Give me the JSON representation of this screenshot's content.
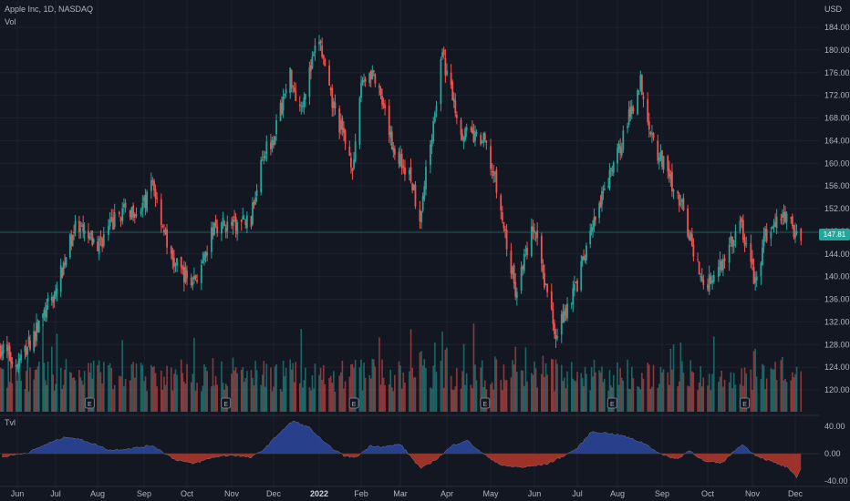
{
  "header": {
    "symbol_line": "Apple Inc, 1D, NASDAQ",
    "vol_label": "Vol",
    "currency": "USD"
  },
  "indicator": {
    "name": "Tvl"
  },
  "last_price_label": "147.81",
  "colors": {
    "background": "#131722",
    "up": "#26a69a",
    "down": "#ef5350",
    "osc_positive": "#2e4aa8",
    "osc_negative": "#c0392b",
    "grid": "#1e222d",
    "last_price_line": "#26a69a"
  },
  "icons": {
    "earnings_marker": "earnings-icon"
  },
  "chart_data": [
    {
      "type": "candlestick",
      "title": "Apple Inc, 1D, NASDAQ",
      "y_axis_label": "USD",
      "y_ticks": [
        "184.00",
        "180.00",
        "176.00",
        "172.00",
        "168.00",
        "164.00",
        "160.00",
        "156.00",
        "152.00",
        "148.00",
        "144.00",
        "140.00",
        "136.00",
        "132.00",
        "128.00",
        "124.00",
        "120.00"
      ],
      "ylim": [
        117.5,
        187
      ],
      "x_ticks": [
        "Jun",
        "Jul",
        "Aug",
        "Sep",
        "Oct",
        "Nov",
        "Dec",
        "2022",
        "Feb",
        "Mar",
        "Apr",
        "May",
        "Jun",
        "Jul",
        "Aug",
        "Sep",
        "Oct",
        "Nov",
        "Dec"
      ],
      "x_tick_dates": [
        "2021-06-01",
        "2021-07-01",
        "2021-08-02",
        "2021-09-01",
        "2021-10-01",
        "2021-11-01",
        "2021-12-01",
        "2022-01-03",
        "2022-02-01",
        "2022-03-01",
        "2022-04-01",
        "2022-05-02",
        "2022-06-01",
        "2022-07-01",
        "2022-08-01",
        "2022-09-01",
        "2022-10-03",
        "2022-11-01",
        "2022-12-01"
      ],
      "close_path": [
        [
          "2021-05-20",
          127.3
        ],
        [
          "2021-06-01",
          124.3
        ],
        [
          "2021-06-15",
          130.2
        ],
        [
          "2021-07-01",
          137.3
        ],
        [
          "2021-07-15",
          148.5
        ],
        [
          "2021-08-02",
          145.5
        ],
        [
          "2021-08-16",
          151.1
        ],
        [
          "2021-09-01",
          152.5
        ],
        [
          "2021-09-07",
          156.7
        ],
        [
          "2021-09-20",
          142.9
        ],
        [
          "2021-10-04",
          139.1
        ],
        [
          "2021-10-12",
          141.5
        ],
        [
          "2021-10-20",
          149.3
        ],
        [
          "2021-11-01",
          148.9
        ],
        [
          "2021-11-15",
          150.0
        ],
        [
          "2021-11-22",
          161.4
        ],
        [
          "2021-12-01",
          164.8
        ],
        [
          "2021-12-13",
          175.7
        ],
        [
          "2021-12-20",
          169.8
        ],
        [
          "2022-01-03",
          182.0
        ],
        [
          "2022-01-10",
          172.2
        ],
        [
          "2022-01-27",
          159.2
        ],
        [
          "2022-02-01",
          174.6
        ],
        [
          "2022-02-09",
          176.3
        ],
        [
          "2022-02-24",
          162.7
        ],
        [
          "2022-03-08",
          157.4
        ],
        [
          "2022-03-14",
          150.6
        ],
        [
          "2022-03-29",
          178.9
        ],
        [
          "2022-04-11",
          165.8
        ],
        [
          "2022-04-28",
          163.6
        ],
        [
          "2022-05-05",
          156.8
        ],
        [
          "2022-05-19",
          137.4
        ],
        [
          "2022-05-31",
          148.8
        ],
        [
          "2022-06-16",
          130.1
        ],
        [
          "2022-07-01",
          138.9
        ],
        [
          "2022-07-15",
          150.2
        ],
        [
          "2022-08-01",
          161.5
        ],
        [
          "2022-08-17",
          174.6
        ],
        [
          "2022-08-26",
          163.6
        ],
        [
          "2022-09-13",
          153.8
        ],
        [
          "2022-09-30",
          138.2
        ],
        [
          "2022-10-13",
          142.9
        ],
        [
          "2022-10-24",
          149.5
        ],
        [
          "2022-11-03",
          138.9
        ],
        [
          "2022-11-10",
          146.9
        ],
        [
          "2022-11-23",
          151.1
        ],
        [
          "2022-11-30",
          148.0
        ],
        [
          "2022-12-05",
          147.8
        ]
      ],
      "last_price": 147.81
    },
    {
      "type": "bar",
      "title": "Vol",
      "values": "daily volume bars colored by up/down day",
      "earnings_dates": [
        "2021-07-27",
        "2021-10-28",
        "2022-01-27",
        "2022-04-28",
        "2022-07-28",
        "2022-10-27"
      ]
    },
    {
      "type": "area",
      "title": "Tvl",
      "y_ticks": [
        "40.00",
        "0.00",
        "-40.00"
      ],
      "ylim": [
        -45,
        45
      ],
      "values": [
        [
          "2021-05-20",
          -5
        ],
        [
          "2021-06-10",
          2
        ],
        [
          "2021-06-25",
          15
        ],
        [
          "2021-07-10",
          25
        ],
        [
          "2021-07-25",
          18
        ],
        [
          "2021-08-10",
          5
        ],
        [
          "2021-08-25",
          8
        ],
        [
          "2021-09-07",
          12
        ],
        [
          "2021-09-22",
          -8
        ],
        [
          "2021-10-05",
          -15
        ],
        [
          "2021-10-20",
          -5
        ],
        [
          "2021-11-01",
          -2
        ],
        [
          "2021-11-15",
          -6
        ],
        [
          "2021-11-25",
          8
        ],
        [
          "2021-12-05",
          30
        ],
        [
          "2021-12-15",
          48
        ],
        [
          "2021-12-27",
          38
        ],
        [
          "2022-01-07",
          15
        ],
        [
          "2022-01-20",
          -3
        ],
        [
          "2022-01-28",
          -6
        ],
        [
          "2022-02-08",
          12
        ],
        [
          "2022-02-18",
          10
        ],
        [
          "2022-03-01",
          14
        ],
        [
          "2022-03-10",
          -10
        ],
        [
          "2022-03-15",
          -22
        ],
        [
          "2022-03-25",
          -8
        ],
        [
          "2022-04-05",
          12
        ],
        [
          "2022-04-15",
          20
        ],
        [
          "2022-04-25",
          2
        ],
        [
          "2022-05-10",
          -18
        ],
        [
          "2022-05-25",
          -20
        ],
        [
          "2022-06-10",
          -15
        ],
        [
          "2022-06-20",
          -5
        ],
        [
          "2022-07-01",
          8
        ],
        [
          "2022-07-12",
          32
        ],
        [
          "2022-07-25",
          30
        ],
        [
          "2022-08-05",
          26
        ],
        [
          "2022-08-20",
          15
        ],
        [
          "2022-09-01",
          -2
        ],
        [
          "2022-09-12",
          -8
        ],
        [
          "2022-09-20",
          5
        ],
        [
          "2022-10-01",
          -12
        ],
        [
          "2022-10-12",
          -14
        ],
        [
          "2022-10-25",
          14
        ],
        [
          "2022-11-03",
          -2
        ],
        [
          "2022-11-12",
          -10
        ],
        [
          "2022-11-25",
          -20
        ],
        [
          "2022-12-02",
          -35
        ],
        [
          "2022-12-05",
          -22
        ]
      ]
    }
  ]
}
